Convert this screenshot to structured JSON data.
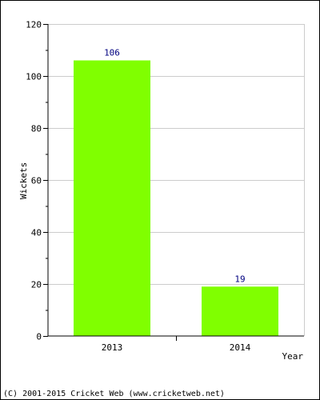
{
  "chart_data": {
    "type": "bar",
    "categories": [
      "2013",
      "2014"
    ],
    "values": [
      106,
      19
    ],
    "data_labels": [
      "106",
      "19"
    ],
    "xlabel": "Year",
    "ylabel": "Wickets",
    "ylim": [
      0,
      120
    ],
    "yticks": [
      "0",
      "20",
      "40",
      "60",
      "80",
      "100",
      "120"
    ],
    "grid": true,
    "legend": "none",
    "colors": {
      "bar": "#80ff00",
      "data_label": "#000080",
      "grid": "#cccccc",
      "axis": "#000000"
    }
  },
  "footer": "(C) 2001-2015 Cricket Web (www.cricketweb.net)"
}
